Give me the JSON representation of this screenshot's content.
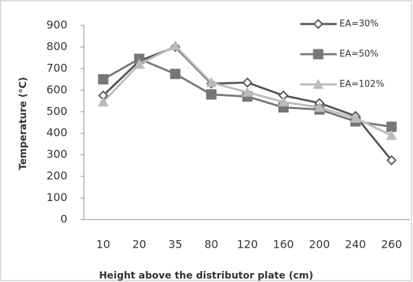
{
  "chart_data": {
    "type": "line",
    "x_label": "Height above the distributor plate (cm)",
    "y_label": "Temperature (°C)",
    "categories": [
      "10",
      "20",
      "35",
      "80",
      "120",
      "160",
      "200",
      "240",
      "260"
    ],
    "series": [
      {
        "name": "EA=30%",
        "color": "#555555",
        "marker": "diamond",
        "values": [
          575,
          735,
          800,
          630,
          635,
          575,
          540,
          480,
          275
        ]
      },
      {
        "name": "EA=50%",
        "color": "#777777",
        "marker": "square",
        "values": [
          650,
          745,
          675,
          580,
          570,
          520,
          510,
          455,
          430
        ]
      },
      {
        "name": "EA=102%",
        "color": "#bbbbbb",
        "marker": "triangle",
        "values": [
          545,
          720,
          805,
          635,
          590,
          545,
          520,
          470,
          390
        ]
      }
    ],
    "ylim": [
      0,
      900
    ],
    "yticks": [
      0,
      100,
      200,
      300,
      400,
      500,
      600,
      700,
      800,
      900
    ],
    "legend": "upper right"
  }
}
